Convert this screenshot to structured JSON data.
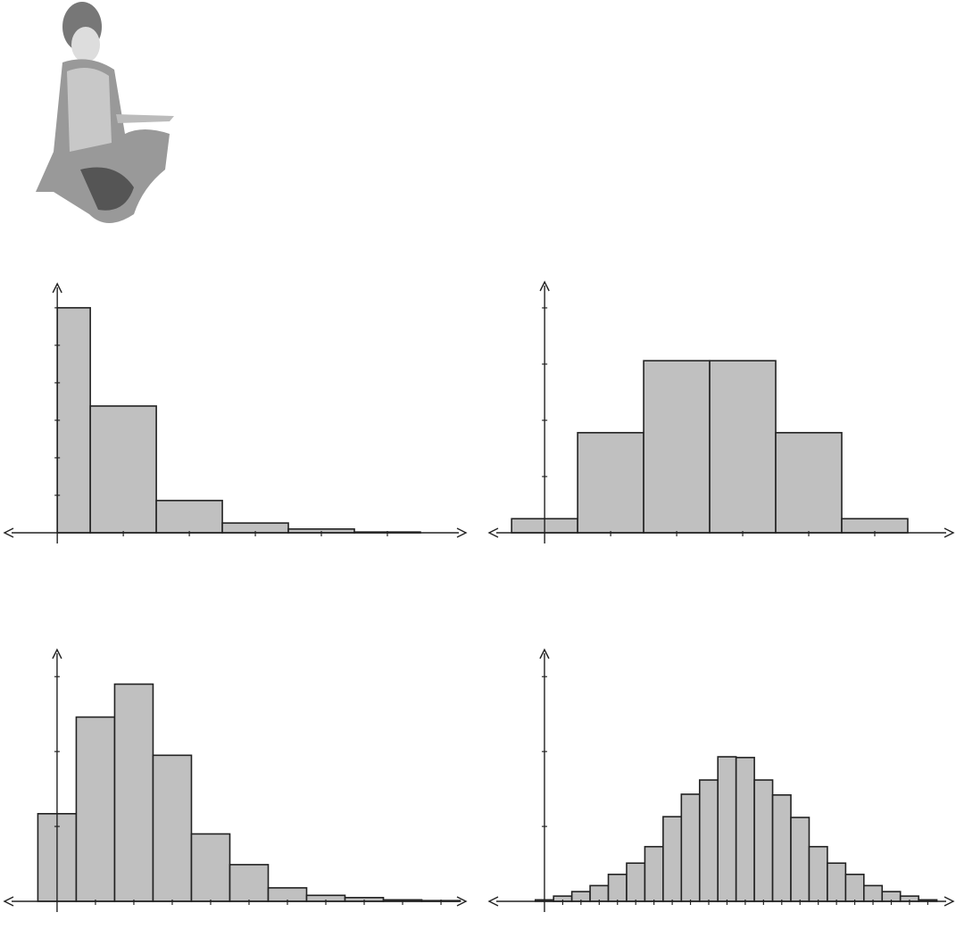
{
  "chart_data": [
    {
      "type": "histogram",
      "color": "#c0c0c0",
      "bins": [
        0,
        0.5,
        1.5,
        2.5,
        3.5,
        4.5,
        5.5
      ],
      "values": [
        6,
        3.38,
        0.86,
        0.26,
        0.1,
        0.02
      ],
      "xlim": [
        -0.8,
        6.19
      ],
      "ylim": [
        0,
        6.64
      ],
      "xticks": [
        1,
        2,
        3,
        4,
        5
      ],
      "yticks": [
        1,
        2,
        3,
        4,
        5,
        6
      ]
    },
    {
      "type": "histogram",
      "color": "#c0c0c0",
      "bins": [
        -0.5,
        0.5,
        1.5,
        2.5,
        3.5,
        4.5,
        5.5
      ],
      "values": [
        0.25,
        1.78,
        3.06,
        3.06,
        1.78,
        0.25
      ],
      "xlim": [
        -0.84,
        6.19
      ],
      "ylim": [
        0,
        4.46
      ],
      "xticks": [
        1,
        2,
        3,
        4,
        5
      ],
      "yticks": [
        1,
        2,
        3,
        4
      ]
    },
    {
      "type": "histogram",
      "color": "#c0c0c0",
      "bins": [
        -0.5,
        0.5,
        1.5,
        2.5,
        3.5,
        4.5,
        5.5,
        6.5,
        7.5,
        8.5,
        9.5,
        10.5
      ],
      "values": [
        1.17,
        2.46,
        2.9,
        1.95,
        0.9,
        0.49,
        0.18,
        0.08,
        0.05,
        0.02,
        0.01
      ],
      "xlim": [
        -1.37,
        10.65
      ],
      "ylim": [
        0,
        3.36
      ],
      "xticks": [
        1,
        2,
        3,
        4,
        5,
        6,
        7,
        8,
        9,
        10
      ],
      "yticks": [
        1,
        2,
        3
      ]
    },
    {
      "type": "histogram",
      "color": "#c0c0c0",
      "bins": [
        -0.5,
        0.5,
        1.5,
        2.5,
        3.5,
        4.5,
        5.5,
        6.5,
        7.5,
        8.5,
        9.5,
        10.5,
        11.5,
        12.5,
        13.5,
        14.5,
        15.5,
        16.5,
        17.5,
        18.5,
        19.5,
        20.5,
        21.5
      ],
      "values": [
        0.02,
        0.07,
        0.13,
        0.21,
        0.36,
        0.51,
        0.73,
        1.13,
        1.43,
        1.62,
        1.93,
        1.92,
        1.62,
        1.42,
        1.12,
        0.73,
        0.51,
        0.36,
        0.21,
        0.13,
        0.07,
        0.02
      ],
      "xlim": [
        -3.03,
        22.4
      ],
      "ylim": [
        0,
        3.36
      ],
      "xticks": [
        1,
        2,
        3,
        4,
        5,
        6,
        7,
        8,
        9,
        10,
        11,
        12,
        13,
        14,
        15,
        16,
        17,
        18,
        19,
        20,
        21
      ],
      "yticks": [
        1,
        2,
        3
      ]
    }
  ]
}
